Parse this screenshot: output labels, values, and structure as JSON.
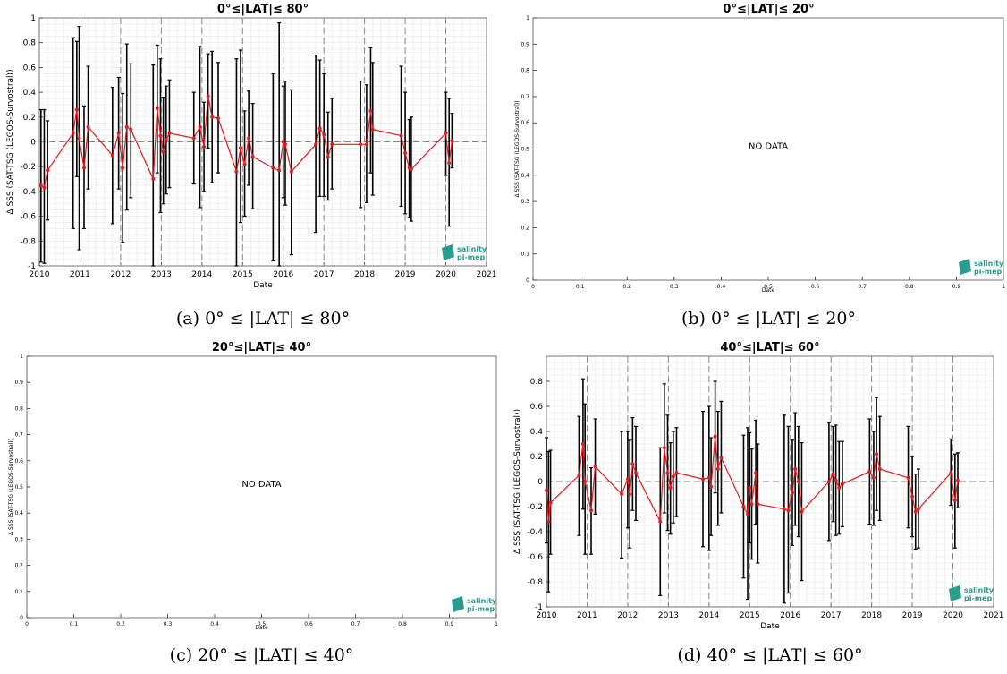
{
  "captions": [
    "(a) 0° ≤ |LAT| ≤ 80°",
    "(b) 0° ≤ |LAT| ≤ 20°",
    "(c) 20° ≤ |LAT| ≤ 40°",
    "(d) 40° ≤ |LAT| ≤ 60°"
  ],
  "logo": {
    "line1": "salinity",
    "line2": "pi-mep",
    "color": "#2a9d8f"
  },
  "colors": {
    "series": "#e41a1c",
    "errorbar": "#000000",
    "grid": "#e6e6e6",
    "dashed": "#888888"
  },
  "chart_data": [
    {
      "type": "line",
      "title": "0°≤|LAT|≤ 80°",
      "xlabel": "Date",
      "ylabel": "Δ SSS (SAT-TSG (LEGOS-Survostral))",
      "xlim": [
        2010,
        2021
      ],
      "ylim": [
        -1,
        1
      ],
      "xticks": [
        "2010",
        "2011",
        "2012",
        "2013",
        "2014",
        "2015",
        "2016",
        "2017",
        "2018",
        "2019",
        "2020",
        "2021"
      ],
      "yticks": [
        "-1",
        "-0.8",
        "-0.6",
        "-0.4",
        "-0.2",
        "0",
        "0.2",
        "0.4",
        "0.6",
        "0.8",
        "1"
      ],
      "vlines": [
        2011,
        2012,
        2013,
        2014,
        2015,
        2016,
        2017,
        2018,
        2019,
        2020
      ],
      "hline": 0,
      "grid": true,
      "points": [
        {
          "x": 2010.04,
          "y": -0.35,
          "lo": -0.97,
          "hi": 0.26
        },
        {
          "x": 2010.12,
          "y": -0.37,
          "lo": -0.98,
          "hi": 0.26
        },
        {
          "x": 2010.2,
          "y": -0.23,
          "lo": -0.63,
          "hi": 0.17
        },
        {
          "x": 2010.83,
          "y": 0.07,
          "lo": -0.7,
          "hi": 0.84
        },
        {
          "x": 2010.92,
          "y": 0.26,
          "lo": -0.28,
          "hi": 0.81
        },
        {
          "x": 2010.98,
          "y": 0.03,
          "lo": -0.87,
          "hi": 0.93
        },
        {
          "x": 2011.1,
          "y": -0.21,
          "lo": -0.7,
          "hi": 0.29
        },
        {
          "x": 2011.2,
          "y": 0.12,
          "lo": -0.38,
          "hi": 0.61
        },
        {
          "x": 2011.8,
          "y": -0.11,
          "lo": -0.66,
          "hi": 0.44
        },
        {
          "x": 2011.95,
          "y": 0.07,
          "lo": -0.38,
          "hi": 0.52
        },
        {
          "x": 2012.05,
          "y": -0.21,
          "lo": -0.81,
          "hi": 0.39
        },
        {
          "x": 2012.15,
          "y": 0.12,
          "lo": -0.55,
          "hi": 0.79
        },
        {
          "x": 2012.25,
          "y": 0.1,
          "lo": -0.45,
          "hi": 0.63
        },
        {
          "x": 2012.8,
          "y": -0.3,
          "lo": -1.0,
          "hi": 0.62
        },
        {
          "x": 2012.9,
          "y": 0.27,
          "lo": -0.25,
          "hi": 0.78
        },
        {
          "x": 2012.98,
          "y": 0.05,
          "lo": -0.57,
          "hi": 0.67
        },
        {
          "x": 2013.05,
          "y": -0.08,
          "lo": -0.5,
          "hi": 0.36
        },
        {
          "x": 2013.12,
          "y": 0.02,
          "lo": -0.42,
          "hi": 0.45
        },
        {
          "x": 2013.2,
          "y": 0.07,
          "lo": -0.37,
          "hi": 0.5
        },
        {
          "x": 2013.8,
          "y": 0.03,
          "lo": -0.34,
          "hi": 0.4
        },
        {
          "x": 2013.95,
          "y": 0.12,
          "lo": -0.53,
          "hi": 0.77
        },
        {
          "x": 2014.05,
          "y": -0.04,
          "lo": -0.4,
          "hi": 0.32
        },
        {
          "x": 2014.15,
          "y": 0.37,
          "lo": -0.05,
          "hi": 0.71
        },
        {
          "x": 2014.25,
          "y": 0.2,
          "lo": -0.33,
          "hi": 0.73
        },
        {
          "x": 2014.4,
          "y": 0.19,
          "lo": -0.25,
          "hi": 0.64
        },
        {
          "x": 2014.85,
          "y": -0.24,
          "lo": -1.0,
          "hi": 0.67
        },
        {
          "x": 2014.95,
          "y": -0.05,
          "lo": -0.65,
          "hi": 0.74
        },
        {
          "x": 2015.05,
          "y": -0.18,
          "lo": -0.6,
          "hi": 0.25
        },
        {
          "x": 2015.15,
          "y": 0.03,
          "lo": -0.35,
          "hi": 0.41
        },
        {
          "x": 2015.25,
          "y": -0.12,
          "lo": -0.54,
          "hi": 0.31
        },
        {
          "x": 2015.75,
          "y": -0.21,
          "lo": -0.96,
          "hi": 0.55
        },
        {
          "x": 2015.9,
          "y": -0.23,
          "lo": -1.0,
          "hi": 0.96
        },
        {
          "x": 2016.0,
          "y": 0.0,
          "lo": -0.45,
          "hi": 0.45
        },
        {
          "x": 2016.05,
          "y": -0.02,
          "lo": -0.51,
          "hi": 0.49
        },
        {
          "x": 2016.2,
          "y": -0.24,
          "lo": -0.91,
          "hi": 0.42
        },
        {
          "x": 2016.8,
          "y": -0.02,
          "lo": -0.73,
          "hi": 0.7
        },
        {
          "x": 2016.9,
          "y": 0.11,
          "lo": -0.44,
          "hi": 0.66
        },
        {
          "x": 2017.0,
          "y": 0.06,
          "lo": -0.44,
          "hi": 0.55
        },
        {
          "x": 2017.1,
          "y": -0.12,
          "lo": -0.47,
          "hi": 0.24
        },
        {
          "x": 2017.2,
          "y": -0.02,
          "lo": -0.38,
          "hi": 0.35
        },
        {
          "x": 2017.9,
          "y": -0.02,
          "lo": -0.53,
          "hi": 0.49
        },
        {
          "x": 2018.05,
          "y": -0.02,
          "lo": -0.49,
          "hi": 0.46
        },
        {
          "x": 2018.15,
          "y": 0.25,
          "lo": -0.25,
          "hi": 0.76
        },
        {
          "x": 2018.2,
          "y": 0.1,
          "lo": -0.43,
          "hi": 0.64
        },
        {
          "x": 2018.9,
          "y": 0.05,
          "lo": -0.52,
          "hi": 0.61
        },
        {
          "x": 2019.0,
          "y": -0.09,
          "lo": -0.58,
          "hi": 0.4
        },
        {
          "x": 2019.1,
          "y": -0.21,
          "lo": -0.61,
          "hi": 0.18
        },
        {
          "x": 2019.15,
          "y": -0.22,
          "lo": -0.64,
          "hi": 0.2
        },
        {
          "x": 2020.0,
          "y": 0.07,
          "lo": -0.27,
          "hi": 0.4
        },
        {
          "x": 2020.08,
          "y": -0.17,
          "lo": -0.68,
          "hi": 0.35
        },
        {
          "x": 2020.15,
          "y": 0.01,
          "lo": -0.21,
          "hi": 0.23
        }
      ]
    },
    {
      "type": "line",
      "title": "0°≤|LAT|≤ 20°",
      "xlabel": "Date",
      "ylabel": "Δ SSS (SAT-TSG (LEGOS-Survostral))",
      "xlim": [
        0,
        1
      ],
      "ylim": [
        0,
        1
      ],
      "xticks": [
        "0",
        "0.1",
        "0.2",
        "0.3",
        "0.4",
        "0.5",
        "0.6",
        "0.7",
        "0.8",
        "0.9",
        "1"
      ],
      "yticks": [
        "0",
        "0.1",
        "0.2",
        "0.3",
        "0.4",
        "0.5",
        "0.6",
        "0.7",
        "0.8",
        "0.9",
        "1"
      ],
      "annotation": "NO DATA",
      "points": []
    },
    {
      "type": "line",
      "title": "20°≤|LAT|≤ 40°",
      "xlabel": "Date",
      "ylabel": "Δ SSS (SAT-TSG (LEGOS-Survostral))",
      "xlim": [
        0,
        1
      ],
      "ylim": [
        0,
        1
      ],
      "xticks": [
        "0",
        "0.1",
        "0.2",
        "0.3",
        "0.4",
        "0.5",
        "0.6",
        "0.7",
        "0.8",
        "0.9",
        "1"
      ],
      "yticks": [
        "0",
        "0.1",
        "0.2",
        "0.3",
        "0.4",
        "0.5",
        "0.6",
        "0.7",
        "0.8",
        "0.9",
        "1"
      ],
      "annotation": "NO DATA",
      "points": []
    },
    {
      "type": "line",
      "title": "40°≤|LAT|≤ 60°",
      "xlabel": "Date",
      "ylabel": "Δ SSS (SAT-TSG (LEGOS-Survostral))",
      "xlim": [
        2010,
        2021
      ],
      "ylim": [
        -1,
        1
      ],
      "xticks": [
        "2010",
        "2011",
        "2012",
        "2013",
        "2014",
        "2015",
        "2016",
        "2017",
        "2018",
        "2019",
        "2020",
        "2021"
      ],
      "yticks": [
        "-1",
        "-0.8",
        "-0.6",
        "-0.4",
        "-0.2",
        "0",
        "0.2",
        "0.4",
        "0.6",
        "0.8"
      ],
      "vlines": [
        2011,
        2012,
        2013,
        2014,
        2015,
        2016,
        2017,
        2018,
        2019,
        2020
      ],
      "hline": 0,
      "grid": true,
      "points": [
        {
          "x": 2010.0,
          "y": -0.07,
          "lo": -0.49,
          "hi": 0.35
        },
        {
          "x": 2010.05,
          "y": -0.32,
          "lo": -0.88,
          "hi": 0.24
        },
        {
          "x": 2010.1,
          "y": -0.17,
          "lo": -0.58,
          "hi": 0.25
        },
        {
          "x": 2010.8,
          "y": 0.05,
          "lo": -0.43,
          "hi": 0.52
        },
        {
          "x": 2010.9,
          "y": 0.3,
          "lo": -0.22,
          "hi": 0.82
        },
        {
          "x": 2010.95,
          "y": 0.0,
          "lo": -0.58,
          "hi": 0.62
        },
        {
          "x": 2011.1,
          "y": -0.23,
          "lo": -0.58,
          "hi": 0.11
        },
        {
          "x": 2011.2,
          "y": 0.12,
          "lo": -0.26,
          "hi": 0.5
        },
        {
          "x": 2011.85,
          "y": -0.1,
          "lo": -0.61,
          "hi": 0.4
        },
        {
          "x": 2012.0,
          "y": 0.02,
          "lo": -0.37,
          "hi": 0.4
        },
        {
          "x": 2012.05,
          "y": -0.1,
          "lo": -0.53,
          "hi": 0.33
        },
        {
          "x": 2012.12,
          "y": 0.14,
          "lo": -0.23,
          "hi": 0.51
        },
        {
          "x": 2012.2,
          "y": 0.07,
          "lo": -0.31,
          "hi": 0.44
        },
        {
          "x": 2012.8,
          "y": -0.32,
          "lo": -0.91,
          "hi": 0.27
        },
        {
          "x": 2012.9,
          "y": 0.27,
          "lo": -0.25,
          "hi": 0.78
        },
        {
          "x": 2012.98,
          "y": 0.07,
          "lo": -0.39,
          "hi": 0.53
        },
        {
          "x": 2013.05,
          "y": -0.05,
          "lo": -0.42,
          "hi": 0.31
        },
        {
          "x": 2013.12,
          "y": 0.04,
          "lo": -0.33,
          "hi": 0.4
        },
        {
          "x": 2013.2,
          "y": 0.07,
          "lo": -0.28,
          "hi": 0.43
        },
        {
          "x": 2013.85,
          "y": 0.02,
          "lo": -0.52,
          "hi": 0.56
        },
        {
          "x": 2014.0,
          "y": 0.03,
          "lo": -0.55,
          "hi": 0.6
        },
        {
          "x": 2014.05,
          "y": -0.04,
          "lo": -0.43,
          "hi": 0.35
        },
        {
          "x": 2014.15,
          "y": 0.36,
          "lo": -0.09,
          "hi": 0.8
        },
        {
          "x": 2014.22,
          "y": 0.1,
          "lo": -0.35,
          "hi": 0.56
        },
        {
          "x": 2014.3,
          "y": 0.19,
          "lo": -0.25,
          "hi": 0.64
        },
        {
          "x": 2014.85,
          "y": -0.2,
          "lo": -0.77,
          "hi": 0.37
        },
        {
          "x": 2014.95,
          "y": -0.26,
          "lo": -0.94,
          "hi": 0.43
        },
        {
          "x": 2015.0,
          "y": -0.05,
          "lo": -0.49,
          "hi": 0.39
        },
        {
          "x": 2015.05,
          "y": -0.18,
          "lo": -0.62,
          "hi": 0.26
        },
        {
          "x": 2015.15,
          "y": 0.07,
          "lo": -0.34,
          "hi": 0.49
        },
        {
          "x": 2015.2,
          "y": -0.18,
          "lo": -0.65,
          "hi": 0.3
        },
        {
          "x": 2015.85,
          "y": -0.22,
          "lo": -0.97,
          "hi": 0.53
        },
        {
          "x": 2015.95,
          "y": -0.23,
          "lo": -0.89,
          "hi": 0.44
        },
        {
          "x": 2016.05,
          "y": -0.09,
          "lo": -0.51,
          "hi": 0.33
        },
        {
          "x": 2016.12,
          "y": 0.1,
          "lo": -0.35,
          "hi": 0.55
        },
        {
          "x": 2016.2,
          "y": 0.0,
          "lo": -0.44,
          "hi": 0.44
        },
        {
          "x": 2016.28,
          "y": -0.24,
          "lo": -0.79,
          "hi": 0.31
        },
        {
          "x": 2016.95,
          "y": 0.0,
          "lo": -0.47,
          "hi": 0.47
        },
        {
          "x": 2017.05,
          "y": 0.06,
          "lo": -0.32,
          "hi": 0.44
        },
        {
          "x": 2017.12,
          "y": 0.01,
          "lo": -0.43,
          "hi": 0.45
        },
        {
          "x": 2017.2,
          "y": -0.05,
          "lo": -0.42,
          "hi": 0.32
        },
        {
          "x": 2017.28,
          "y": -0.02,
          "lo": -0.36,
          "hi": 0.32
        },
        {
          "x": 2017.95,
          "y": 0.08,
          "lo": -0.34,
          "hi": 0.5
        },
        {
          "x": 2018.05,
          "y": 0.03,
          "lo": -0.35,
          "hi": 0.4
        },
        {
          "x": 2018.12,
          "y": 0.22,
          "lo": -0.23,
          "hi": 0.67
        },
        {
          "x": 2018.2,
          "y": 0.1,
          "lo": -0.31,
          "hi": 0.52
        },
        {
          "x": 2018.9,
          "y": 0.03,
          "lo": -0.37,
          "hi": 0.44
        },
        {
          "x": 2019.0,
          "y": -0.12,
          "lo": -0.44,
          "hi": 0.2
        },
        {
          "x": 2019.08,
          "y": -0.24,
          "lo": -0.54,
          "hi": 0.06
        },
        {
          "x": 2019.15,
          "y": -0.22,
          "lo": -0.53,
          "hi": 0.1
        },
        {
          "x": 2019.95,
          "y": 0.07,
          "lo": -0.19,
          "hi": 0.34
        },
        {
          "x": 2020.05,
          "y": -0.15,
          "lo": -0.53,
          "hi": 0.22
        },
        {
          "x": 2020.12,
          "y": 0.01,
          "lo": -0.21,
          "hi": 0.23
        }
      ]
    }
  ]
}
